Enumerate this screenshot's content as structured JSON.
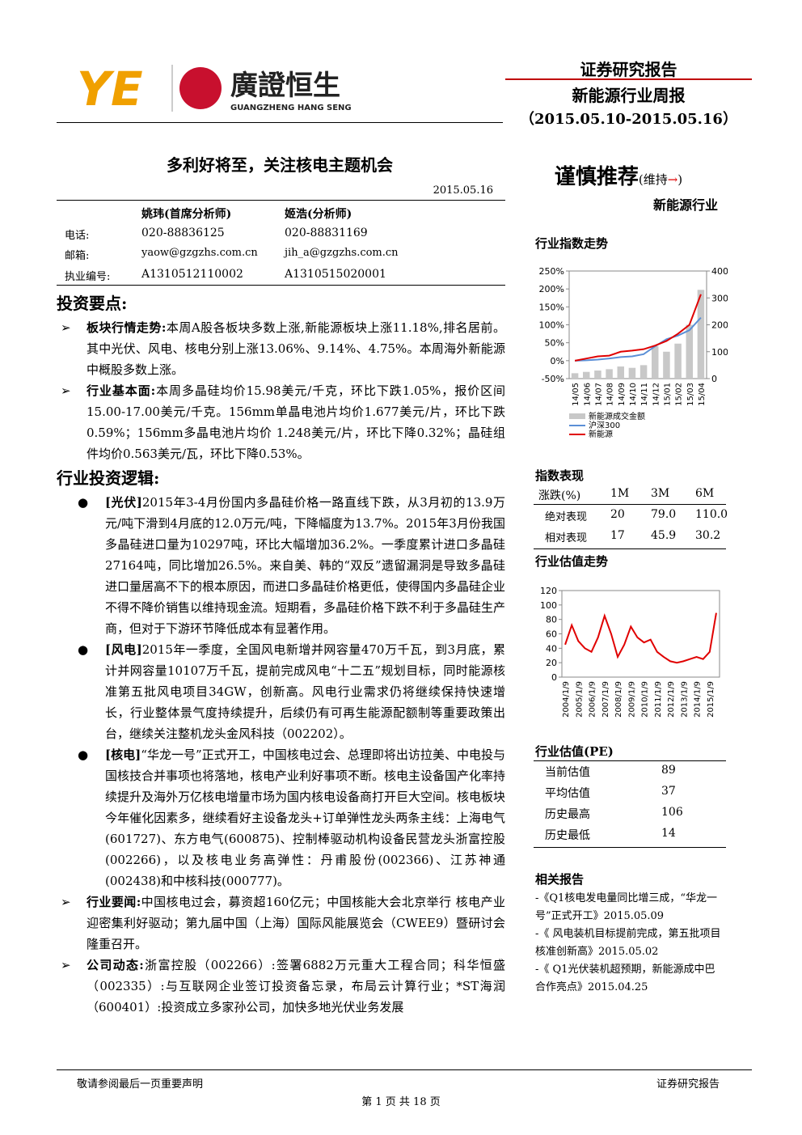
{
  "header": {
    "logo_text": "廣證恒生",
    "logo_en": "GUANGZHENG HANG SENG",
    "title": "证券研究报告",
    "subtitle": "新能源行业周报",
    "period": "（2015.05.10-2015.05.16）"
  },
  "report": {
    "title": "多利好将至，关注核电主题机会",
    "date": "2015.05.16"
  },
  "analysts": {
    "header": [
      "姚玮(首席分析师)",
      "姬浩(分析师)"
    ],
    "rows": [
      [
        "电话:",
        "020-88836125",
        "020-88831169"
      ],
      [
        "邮箱:",
        "yaow@gzgzhs.com.cn",
        "jih_a@gzgzhs.com.cn"
      ],
      [
        "执业编号:",
        "A1310512110002",
        "A1310515020001"
      ]
    ]
  },
  "rating": {
    "text": "谨慎推荐",
    "status": "(维持",
    "arrow": "→",
    "close": ")",
    "industry": "新能源行业"
  },
  "points": {
    "heading": "投资要点:",
    "items": [
      {
        "lead": "板块行情走势:",
        "body": "本周A股各板块多数上涨,新能源板块上涨11.18%,排名居前。其中光伏、风电、核电分别上涨13.06%、9.14%、4.75%。本周海外新能源中概股多数上涨。"
      },
      {
        "lead": "行业基本面:",
        "body": "本周多晶硅均价15.98美元/千克，环比下跌1.05%，报价区间15.00-17.00美元/千克。156mm单晶电池片均价1.677美元/片，环比下跌 0.59%；156mm多晶电池片均价 1.248美元/片，环比下降0.32%；晶硅组件均价0.563美元/瓦，环比下降0.53%。"
      }
    ]
  },
  "logic": {
    "heading": "行业投资逻辑:",
    "items": [
      {
        "tag": "[光伏]",
        "body": "2015年3-4月份国内多晶硅价格一路直线下跌，从3月初的13.9万元/吨下滑到4月底的12.0万元/吨，下降幅度为13.7%。2015年3月份我国多晶硅进口量为10297吨，环比大幅增加36.2%。一季度累计进口多晶硅27164吨，同比增加26.5%。来自美、韩的“双反”遗留漏洞是导致多晶硅进口量居高不下的根本原因，而进口多晶硅价格更低，使得国内多晶硅企业不得不降价销售以维持现金流。短期看，多晶硅价格下跌不利于多晶硅生产商，但对于下游环节降低成本有显著作用。"
      },
      {
        "tag": "[风电]",
        "body": "2015年一季度，全国风电新增并网容量470万千瓦，到3月底，累计并网容量10107万千瓦，提前完成风电“十二五”规划目标，同时能源核准第五批风电项目34GW，创新高。风电行业需求仍将继续保持快速增长，行业整体景气度持续提升，后续仍有可再生能源配额制等重要政策出台，继续关注整机龙头金风科技（002202）。"
      },
      {
        "tag": "[核电]",
        "body": "“华龙一号”正式开工，中国核电过会、总理即将出访拉美、中电投与国核技合并事项也将落地，核电产业利好事项不断。核电主设备国产化率持续提升及海外万亿核电增量市场为国内核电设备商打开巨大空间。核电板块今年催化因素多，继续看好主设备龙头+订单弹性龙头两条主线：上海电气(601727)、东方电气(600875)、控制棒驱动机构设备民营龙头浙富控股(002266)，以及核电业务高弹性：丹甫股份(002366)、江苏神通(002438)和中核科技(000777)。"
      }
    ]
  },
  "news": [
    {
      "lead": "行业要闻:",
      "body": "中国核电过会，募资超160亿元；中国核能大会北京举行 核电产业迎密集利好驱动；第九届中国（上海）国际风能展览会（CWEE9）暨研讨会隆重召开。"
    },
    {
      "lead": "公司动态:",
      "body": "浙富控股（002266）:签署6882万元重大工程合同；科华恒盛（002335）:与互联网企业签订投资备忘录，布局云计算行业；*ST海润（600401）:投资成立多家孙公司，加快多地光伏业务发展"
    }
  ],
  "index_chart": {
    "type": "line",
    "title": "行业指数走势",
    "categories": [
      "14/05",
      "14/06",
      "14/07",
      "14/08",
      "14/09",
      "14/10",
      "14/11",
      "14/12",
      "15/01",
      "15/02",
      "15/03",
      "15/04"
    ],
    "ylim": [
      -50,
      250
    ],
    "yticks": [
      {
        "value": -50,
        "label": "-50%"
      },
      {
        "value": 0,
        "label": "0%"
      },
      {
        "value": 50,
        "label": "50%"
      },
      {
        "value": 100,
        "label": "100%"
      },
      {
        "value": 150,
        "label": "150%"
      },
      {
        "value": 200,
        "label": "200%"
      },
      {
        "value": 250,
        "label": "250%"
      }
    ],
    "y2lim": [
      0,
      400
    ],
    "y2ticks": [
      0,
      100,
      200,
      300,
      400
    ],
    "series": [
      {
        "name": "新能源成交金额",
        "color": "#c8c8c8",
        "type": "bar",
        "axis": "y2",
        "values": [
          20,
          25,
          30,
          35,
          45,
          40,
          50,
          120,
          100,
          130,
          200,
          330
        ]
      },
      {
        "name": "沪深300",
        "color": "#5b8fd6",
        "values": [
          0,
          1,
          3,
          6,
          10,
          12,
          18,
          40,
          60,
          70,
          85,
          120
        ]
      },
      {
        "name": "新能源",
        "color": "#e00000",
        "values": [
          0,
          6,
          12,
          14,
          25,
          28,
          32,
          42,
          55,
          75,
          100,
          185
        ]
      }
    ]
  },
  "performance": {
    "title": "指数表现",
    "header": [
      "涨跌(%)",
      "1M",
      "3M",
      "6M"
    ],
    "rows": [
      [
        "绝对表现",
        "20",
        "79.0",
        "110.0"
      ],
      [
        "相对表现",
        "17",
        "45.9",
        "30.2"
      ]
    ]
  },
  "valuation_chart": {
    "type": "line",
    "title": "行业估值走势",
    "categories": [
      "2004/1/9",
      null,
      "2005/1/9",
      null,
      "2006/1/9",
      null,
      "2007/1/9",
      null,
      "2008/1/9",
      null,
      "2009/1/9",
      null,
      "2010/1/9",
      null,
      "2011/1/9",
      null,
      "2012/1/9",
      null,
      "2013/1/9",
      null,
      "2014/1/9",
      null,
      "2015/1/9",
      null
    ],
    "ylim": [
      0,
      120
    ],
    "yticks": [
      0,
      20,
      40,
      60,
      80,
      100,
      120
    ],
    "series": [
      {
        "color": "#e00000",
        "values": [
          45,
          72,
          50,
          40,
          35,
          55,
          85,
          60,
          28,
          45,
          70,
          55,
          48,
          52,
          35,
          28,
          22,
          20,
          22,
          25,
          28,
          25,
          35,
          89
        ]
      }
    ]
  },
  "pe": {
    "title": "行业估值(PE)",
    "rows": [
      [
        "当前估值",
        "89"
      ],
      [
        "平均估值",
        "37"
      ],
      [
        "历史最高",
        "106"
      ],
      [
        "历史最低",
        "14"
      ]
    ]
  },
  "related": {
    "title": "相关报告",
    "items": [
      "-《Q1核电发电量同比增三成，“华龙一号”正式开工》2015.05.09",
      "-《 风电装机目标提前完成，第五批项目核准创新高》2015.05.02",
      "-《 Q1光伏装机超预期，新能源成中巴合作亮点》2015.04.25"
    ]
  },
  "footer": {
    "left": "敬请参阅最后一页重要声明",
    "right": "证券研究报告",
    "page": "第 1 页 共 18 页"
  }
}
